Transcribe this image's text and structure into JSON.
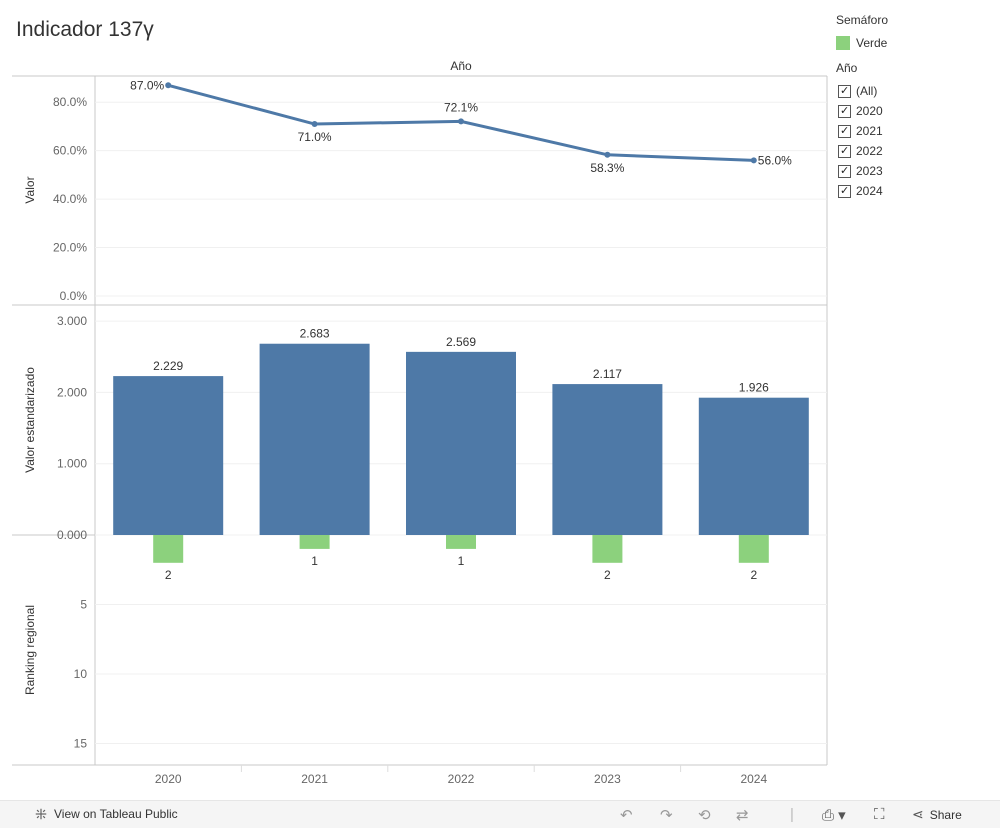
{
  "title": "Indicador 137γ",
  "chart_data": {
    "type": "combo",
    "top_header": "Año",
    "categories": [
      "2020",
      "2021",
      "2022",
      "2023",
      "2024"
    ],
    "panels": [
      {
        "type": "line",
        "ylabel": "Valor",
        "ylim": [
          0,
          90
        ],
        "yticks": [
          "0.0%",
          "20.0%",
          "40.0%",
          "60.0%",
          "80.0%"
        ],
        "ytick_values": [
          0,
          20,
          40,
          60,
          80
        ],
        "values": [
          87.0,
          71.0,
          72.1,
          58.3,
          56.0
        ],
        "labels": [
          "87.0%",
          "71.0%",
          "72.1%",
          "58.3%",
          "56.0%"
        ],
        "color": "#4e79a7"
      },
      {
        "type": "bar",
        "ylabel": "Valor estandarizado",
        "ylim": [
          0,
          3.1
        ],
        "yticks": [
          "0.000",
          "1.000",
          "2.000",
          "3.000"
        ],
        "ytick_values": [
          0,
          1,
          2,
          3
        ],
        "values": [
          2.229,
          2.683,
          2.569,
          2.117,
          1.926
        ],
        "labels": [
          "2.229",
          "2.683",
          "2.569",
          "2.117",
          "1.926"
        ],
        "color": "#4e79a7"
      },
      {
        "type": "bar",
        "ylabel": "Ranking regional",
        "ylim": [
          0,
          16.4
        ],
        "reversed": true,
        "yticks": [
          "5",
          "10",
          "15"
        ],
        "ytick_values": [
          5,
          10,
          15
        ],
        "values": [
          2,
          1,
          1,
          2,
          2
        ],
        "labels": [
          "2",
          "1",
          "1",
          "2",
          "2"
        ],
        "color": "#8cd17d"
      }
    ],
    "grid": true
  },
  "legend_semaforo": {
    "title": "Semáforo",
    "items": [
      {
        "label": "Verde",
        "color": "#8cd17d"
      }
    ]
  },
  "legend_ano": {
    "title": "Año",
    "items": [
      "(All)",
      "2020",
      "2021",
      "2022",
      "2023",
      "2024"
    ]
  },
  "footer": {
    "view_label": "View on Tableau Public",
    "share_label": "Share"
  }
}
